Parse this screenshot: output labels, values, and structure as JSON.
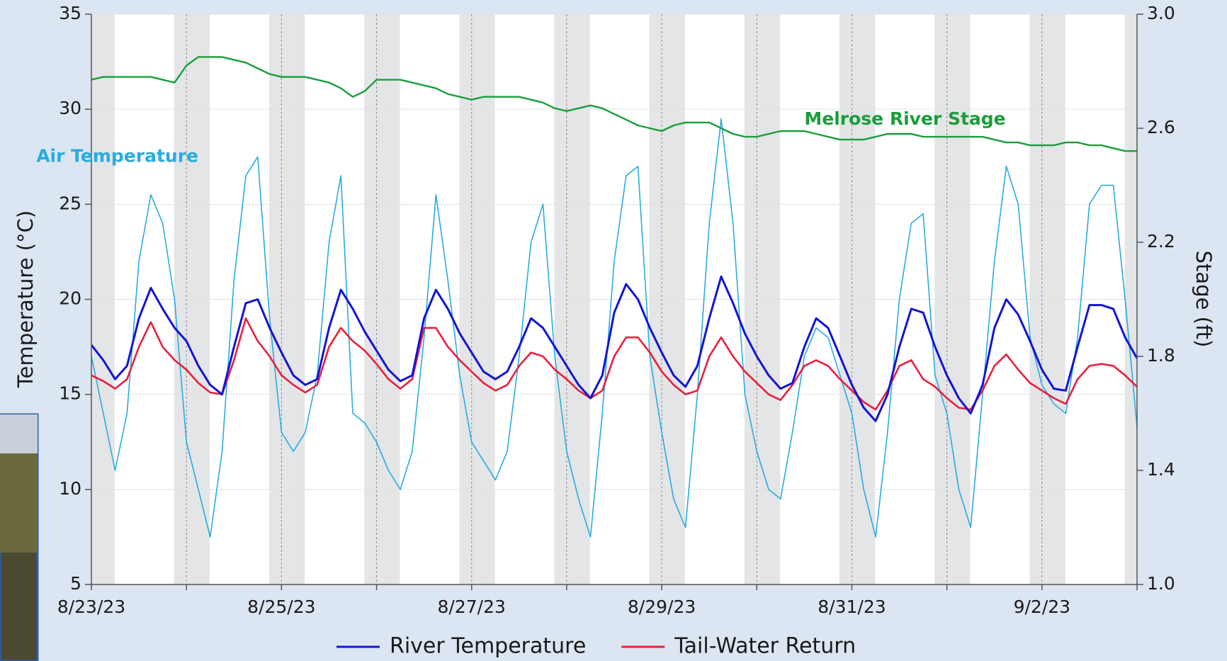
{
  "chart_data": {
    "type": "line",
    "y_label": "Temperature (°C)",
    "y2_label": "Stage (ft)",
    "xlim": [
      0,
      11
    ],
    "xticks": [
      {
        "value": 0,
        "label": "8/23/23"
      },
      {
        "value": 2,
        "label": "8/25/23"
      },
      {
        "value": 4,
        "label": "8/27/23"
      },
      {
        "value": 6,
        "label": "8/29/23"
      },
      {
        "value": 8,
        "label": "8/31/23"
      },
      {
        "value": 10,
        "label": "9/2/23"
      }
    ],
    "xminorticks": [
      1,
      3,
      5,
      7,
      9,
      11
    ],
    "ylim": [
      5,
      35
    ],
    "yticks": [
      5,
      10,
      15,
      20,
      25,
      30,
      35
    ],
    "y2lim": [
      1,
      3
    ],
    "y2ticks": [
      {
        "value": 1,
        "label": "1.0"
      },
      1.4,
      1.8,
      2.2,
      2.6,
      {
        "value": 3,
        "label": "3.0"
      }
    ],
    "grid": true,
    "night_shading": true,
    "x": [
      0,
      0.125,
      0.25,
      0.375,
      0.5,
      0.625,
      0.75,
      0.875,
      1,
      1.125,
      1.25,
      1.375,
      1.5,
      1.625,
      1.75,
      1.875,
      2,
      2.125,
      2.25,
      2.375,
      2.5,
      2.625,
      2.75,
      2.875,
      3,
      3.125,
      3.25,
      3.375,
      3.5,
      3.625,
      3.75,
      3.875,
      4,
      4.125,
      4.25,
      4.375,
      4.5,
      4.625,
      4.75,
      4.875,
      5,
      5.125,
      5.25,
      5.375,
      5.5,
      5.625,
      5.75,
      5.875,
      6,
      6.125,
      6.25,
      6.375,
      6.5,
      6.625,
      6.75,
      6.875,
      7,
      7.125,
      7.25,
      7.375,
      7.5,
      7.625,
      7.75,
      7.875,
      8,
      8.125,
      8.25,
      8.375,
      8.5,
      8.625,
      8.75,
      8.875,
      9,
      9.125,
      9.25,
      9.375,
      9.5,
      9.625,
      9.75,
      9.875,
      10,
      10.125,
      10.25,
      10.375,
      10.5,
      10.625,
      10.75,
      10.875,
      11
    ],
    "series": [
      {
        "name": "Air Temperature",
        "color": "#29abe2",
        "legend": false,
        "width": 1.6,
        "values": [
          17,
          14,
          11,
          14,
          22,
          25.5,
          24,
          20,
          12.5,
          10,
          7.5,
          12,
          21,
          26.5,
          27.5,
          19,
          13,
          12,
          13,
          16,
          23,
          26.5,
          14,
          13.5,
          12.5,
          11,
          10,
          12,
          18,
          25.5,
          21,
          16,
          12.5,
          11.5,
          10.5,
          12,
          17,
          23,
          25,
          17,
          12,
          9.5,
          7.5,
          14,
          22,
          26.5,
          27,
          17,
          13,
          9.5,
          8,
          15,
          24,
          29.5,
          24,
          15,
          12,
          10,
          9.5,
          13,
          17,
          18.5,
          18,
          16,
          14,
          10,
          7.5,
          13,
          20,
          24,
          24.5,
          16,
          14,
          10,
          8,
          15,
          22,
          27,
          25,
          18,
          15.5,
          14.5,
          14,
          18,
          25,
          26,
          26,
          20,
          13.3
        ]
      },
      {
        "name": "Melrose River Stage",
        "color": "#1a9e3a",
        "legend": false,
        "axis": "y2",
        "width": 2.4,
        "values": [
          2.77,
          2.78,
          2.78,
          2.78,
          2.78,
          2.78,
          2.77,
          2.76,
          2.82,
          2.85,
          2.85,
          2.85,
          2.84,
          2.83,
          2.81,
          2.79,
          2.78,
          2.78,
          2.78,
          2.77,
          2.76,
          2.74,
          2.71,
          2.73,
          2.77,
          2.77,
          2.77,
          2.76,
          2.75,
          2.74,
          2.72,
          2.71,
          2.7,
          2.71,
          2.71,
          2.71,
          2.71,
          2.7,
          2.69,
          2.67,
          2.66,
          2.67,
          2.68,
          2.67,
          2.65,
          2.63,
          2.61,
          2.6,
          2.59,
          2.61,
          2.62,
          2.62,
          2.62,
          2.6,
          2.58,
          2.57,
          2.57,
          2.58,
          2.59,
          2.59,
          2.59,
          2.58,
          2.57,
          2.56,
          2.56,
          2.56,
          2.57,
          2.58,
          2.58,
          2.58,
          2.57,
          2.57,
          2.57,
          2.57,
          2.57,
          2.57,
          2.56,
          2.55,
          2.55,
          2.54,
          2.54,
          2.54,
          2.55,
          2.55,
          2.54,
          2.54,
          2.53,
          2.52,
          2.52
        ]
      },
      {
        "name": "Tail-Water Return",
        "color": "#e8203c",
        "legend": true,
        "width": 2.6,
        "values": [
          16,
          15.7,
          15.3,
          15.8,
          17.5,
          18.8,
          17.5,
          16.8,
          16.3,
          15.6,
          15.1,
          15,
          16.8,
          19,
          17.8,
          17,
          16,
          15.5,
          15.1,
          15.5,
          17.5,
          18.5,
          17.8,
          17.3,
          16.6,
          15.8,
          15.3,
          15.8,
          18.5,
          18.5,
          17.5,
          16.8,
          16.2,
          15.6,
          15.2,
          15.5,
          16.5,
          17.2,
          17,
          16.3,
          15.8,
          15.2,
          14.8,
          15.2,
          17,
          18,
          18,
          17.2,
          16.2,
          15.5,
          15,
          15.2,
          17,
          18,
          17,
          16.2,
          15.6,
          15,
          14.7,
          15.5,
          16.5,
          16.8,
          16.5,
          15.8,
          15.2,
          14.6,
          14.2,
          15.2,
          16.5,
          16.8,
          15.8,
          15.4,
          14.8,
          14.3,
          14.2,
          15.2,
          16.5,
          17.1,
          16.3,
          15.6,
          15.2,
          14.8,
          14.5,
          15.8,
          16.5,
          16.6,
          16.5,
          16,
          15.4
        ]
      },
      {
        "name": "River Temperature",
        "color": "#1414d4",
        "legend": true,
        "width": 3,
        "values": [
          17.6,
          16.8,
          15.8,
          16.5,
          19,
          20.6,
          19.5,
          18.5,
          17.8,
          16.5,
          15.5,
          15,
          17.5,
          19.8,
          20,
          18.5,
          17.2,
          16,
          15.5,
          15.8,
          18.5,
          20.5,
          19.5,
          18.3,
          17.3,
          16.3,
          15.7,
          16,
          19,
          20.5,
          19.5,
          18.2,
          17.2,
          16.2,
          15.8,
          16.2,
          17.5,
          19,
          18.5,
          17.5,
          16.5,
          15.5,
          14.8,
          16,
          19.3,
          20.8,
          20,
          18.5,
          17.2,
          16,
          15.4,
          16.5,
          19,
          21.2,
          19.8,
          18.2,
          17,
          16,
          15.3,
          15.6,
          17.5,
          19,
          18.5,
          17,
          15.5,
          14.3,
          13.6,
          15,
          17.5,
          19.5,
          19.3,
          17.5,
          16,
          14.8,
          14,
          15.5,
          18.5,
          20,
          19.2,
          17.8,
          16.3,
          15.3,
          15.2,
          17.5,
          19.7,
          19.7,
          19.5,
          18,
          16.9
        ]
      }
    ],
    "annotations": [
      {
        "series": 0,
        "x": 0.24,
        "y": 27.5
      },
      {
        "series": 1,
        "x": 8.32,
        "y": 2.63
      }
    ]
  }
}
